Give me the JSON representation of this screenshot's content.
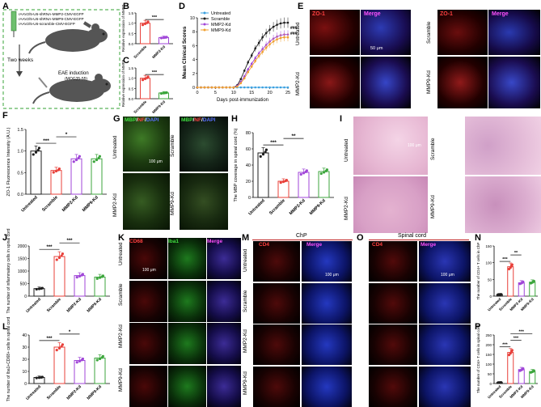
{
  "panel_letters": {
    "A": "A",
    "B": "B",
    "C": "C",
    "D": "D",
    "E": "E",
    "F": "F",
    "G": "G",
    "H": "H",
    "I": "I",
    "J": "J",
    "K": "K",
    "L": "L",
    "M": "M",
    "N": "N",
    "O": "O",
    "P": "P"
  },
  "panel_a": {
    "constructs": [
      "rAAV2/5-U6-shRNA-MMP2-CMV-EGFP",
      "rAAV2/5-U6-shRNA-MMP9-CMV-EGFP",
      "rAAV2/5-U6-scramble-CMV-EGFP"
    ],
    "arrow_text": "Two weeks",
    "eae_text": "EAE induction",
    "eae_sub": "(MOG35-55)"
  },
  "colors": {
    "untreated": "#1e1e1e",
    "scramble": "#e8403a",
    "mmp2": "#a046d8",
    "mmp9": "#3ca63c",
    "mmp9_line": "#f0a030",
    "untreated_line": "#3aa0e0",
    "dash_green": "#5ab45a"
  },
  "chart_data": [
    {
      "panel": "B",
      "type": "bar",
      "categories": [
        "Scramble",
        "MMP2-Kd"
      ],
      "values": [
        1.0,
        0.3
      ],
      "ylabel": "Relative expression of MMP2",
      "ylim": [
        0,
        1.5
      ],
      "yticks": [
        "0.0",
        "0.5",
        "1.0",
        "1.5"
      ],
      "sig": [
        "***"
      ]
    },
    {
      "panel": "C",
      "type": "bar",
      "categories": [
        "Scramble",
        "MMP9-Kd"
      ],
      "values": [
        1.0,
        0.28
      ],
      "ylabel": "Relative expression of MMP9",
      "ylim": [
        0,
        1.5
      ],
      "yticks": [
        "0.0",
        "0.5",
        "1.0",
        "1.5"
      ],
      "sig": [
        "***"
      ]
    },
    {
      "panel": "D",
      "type": "line",
      "xlabel": "Days post-immunization",
      "ylabel": "Mean Clinical Scores",
      "xticks": [
        "0",
        "5",
        "10",
        "15",
        "20",
        "25"
      ],
      "yticks": [
        "0",
        "2",
        "4",
        "6",
        "8",
        "10"
      ],
      "xlim": [
        0,
        25
      ],
      "ylim": [
        0,
        10
      ],
      "legend": [
        "Untreated",
        "Scramble",
        "MMP2-Kd",
        "MMP9-Kd"
      ],
      "sig": [
        "###",
        "###"
      ],
      "x": [
        0,
        1,
        2,
        3,
        4,
        5,
        6,
        7,
        8,
        9,
        10,
        11,
        12,
        13,
        14,
        15,
        16,
        17,
        18,
        19,
        20,
        21,
        22,
        23,
        24,
        25
      ],
      "series": [
        {
          "name": "Untreated",
          "values": [
            0,
            0,
            0,
            0,
            0,
            0,
            0,
            0,
            0,
            0,
            0,
            0,
            0,
            0,
            0,
            0,
            0,
            0,
            0,
            0,
            0,
            0,
            0,
            0,
            0,
            0
          ]
        },
        {
          "name": "Scramble",
          "values": [
            0,
            0,
            0,
            0,
            0,
            0,
            0,
            0,
            0,
            0,
            0,
            0.3,
            1.2,
            2.4,
            3.6,
            4.6,
            5.6,
            6.4,
            7.2,
            7.8,
            8.3,
            8.7,
            9.0,
            9.2,
            9.3,
            9.3
          ]
        },
        {
          "name": "MMP2-Kd",
          "values": [
            0,
            0,
            0,
            0,
            0,
            0,
            0,
            0,
            0,
            0,
            0,
            0.2,
            0.8,
            1.6,
            2.6,
            3.4,
            4.2,
            4.9,
            5.5,
            6.1,
            6.6,
            7.0,
            7.3,
            7.5,
            7.6,
            7.6
          ]
        },
        {
          "name": "MMP9-Kd",
          "values": [
            0,
            0,
            0,
            0,
            0,
            0,
            0,
            0,
            0,
            0,
            0,
            0.1,
            0.6,
            1.3,
            2.2,
            3.0,
            3.8,
            4.5,
            5.1,
            5.7,
            6.2,
            6.6,
            6.9,
            7.1,
            7.2,
            7.2
          ]
        }
      ]
    },
    {
      "panel": "F",
      "type": "bar",
      "categories": [
        "Untreated",
        "Scramble",
        "MMP2-Kd",
        "MMP9-Kd"
      ],
      "values": [
        1.0,
        0.55,
        0.82,
        0.82
      ],
      "ylabel": "ZO-1 Fluorescence Intensity (A.U.)",
      "ylim": [
        0,
        1.5
      ],
      "yticks": [
        "0.0",
        "0.5",
        "1.0",
        "1.5"
      ],
      "sig": [
        "***",
        "*"
      ]
    },
    {
      "panel": "H",
      "type": "bar",
      "categories": [
        "Untreated",
        "Scramble",
        "MMP2-Kd",
        "MMP9-Kd"
      ],
      "values": [
        55,
        20,
        31,
        32
      ],
      "ylabel": "The MBP coverage in spinal cord (%)",
      "ylim": [
        0,
        80
      ],
      "yticks": [
        "0",
        "20",
        "40",
        "60",
        "80"
      ],
      "sig": [
        "***",
        "**"
      ]
    },
    {
      "panel": "J",
      "type": "bar",
      "categories": [
        "Untreated",
        "Scramble",
        "MMP2-Kd",
        "MMP9-Kd"
      ],
      "values": [
        300,
        1580,
        820,
        760
      ],
      "ylabel": "The number of inflammatory cells in spinal cord",
      "ylim": [
        0,
        2000
      ],
      "yticks": [
        "0",
        "500",
        "1000",
        "1500",
        "2000"
      ],
      "sig": [
        "***",
        "***"
      ]
    },
    {
      "panel": "L",
      "type": "bar",
      "categories": [
        "Untreated",
        "Scramble",
        "MMP2-Kd",
        "MMP9-Kd"
      ],
      "values": [
        5,
        30,
        19,
        21
      ],
      "ylabel": "The number of Iba1+CD68+ cells in spinal cord",
      "ylim": [
        0,
        40
      ],
      "yticks": [
        "0",
        "10",
        "20",
        "30",
        "40"
      ],
      "sig": [
        "***",
        "*"
      ]
    },
    {
      "panel": "N",
      "type": "bar",
      "categories": [
        "Untreated",
        "Scramble",
        "MMP2-Kd",
        "MMP9-Kd"
      ],
      "values": [
        5,
        88,
        40,
        42
      ],
      "ylabel": "The number of CD4+ T cells in ChP",
      "ylim": [
        0,
        150
      ],
      "yticks": [
        "0",
        "50",
        "100",
        "150"
      ],
      "sig": [
        "***",
        "**"
      ]
    },
    {
      "panel": "P",
      "type": "bar",
      "categories": [
        "Untreated",
        "Scramble",
        "MMP2-Kd",
        "MMP9-Kd"
      ],
      "values": [
        5,
        160,
        72,
        62
      ],
      "ylabel": "The number of CD4+ T cells in spinal cord",
      "ylim": [
        0,
        250
      ],
      "yticks": [
        "0",
        "50",
        "100",
        "150",
        "200",
        "250"
      ],
      "sig": [
        "***",
        "***",
        "***"
      ]
    }
  ],
  "panel_e": {
    "ch1": "ZO-1",
    "ch2": "Merge",
    "rows": [
      "Untreated",
      "MMP2-Kd"
    ],
    "rows2": [
      "Scramble",
      "MMP9-Kd"
    ],
    "scale": "50 μm"
  },
  "panel_g": {
    "mbp": "MBP",
    "nf": "NF",
    "dapi": "DAPI",
    "rows": [
      "Untreated",
      "MMP2-Kd"
    ],
    "rows2": [
      "Scramble",
      "MMP9-Kd"
    ],
    "scale": "100 μm"
  },
  "panel_i": {
    "rows": [
      "Untreated",
      "MMP2-Kd"
    ],
    "rows2": [
      "Scramble",
      "MMP9-Kd"
    ],
    "scale": "100 μm"
  },
  "panel_k": {
    "cd68": "CD68",
    "iba1": "Iba1",
    "merge": "Merge",
    "rows": [
      "Untreated",
      "Scramble",
      "MMP2-Kd",
      "MMP9-Kd"
    ],
    "scale": "100 μm"
  },
  "panel_m": {
    "header": "ChP",
    "cd4": "CD4",
    "merge": "Merge",
    "rows": [
      "Untreated",
      "Scramble",
      "MMP2-Kd",
      "MMP9-Kd"
    ],
    "scale": "100 μm"
  },
  "panel_o": {
    "header": "Spinal cord",
    "cd4": "CD4",
    "merge": "Merge",
    "scale": "100 μm"
  }
}
